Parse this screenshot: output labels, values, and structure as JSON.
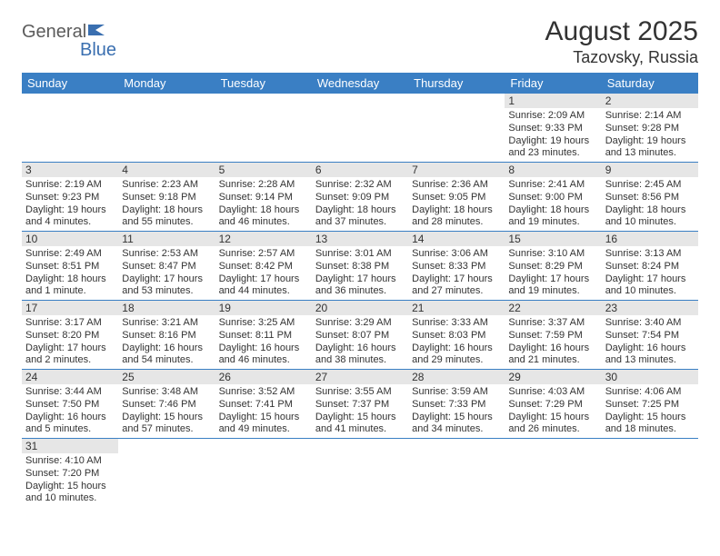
{
  "logo": {
    "part1": "General",
    "part2": "Blue"
  },
  "title": "August 2025",
  "location": "Tazovsky, Russia",
  "colors": {
    "headerBg": "#3a7fc4",
    "headerText": "#ffffff",
    "dayNumBg": "#e6e6e6",
    "border": "#3a7fc4",
    "text": "#333333",
    "logoGray": "#5b5b5b",
    "logoBlue": "#3a6fb0"
  },
  "weekdays": [
    "Sunday",
    "Monday",
    "Tuesday",
    "Wednesday",
    "Thursday",
    "Friday",
    "Saturday"
  ],
  "days": [
    {
      "n": "1",
      "sr": "Sunrise: 2:09 AM",
      "ss": "Sunset: 9:33 PM",
      "dl": "Daylight: 19 hours and 23 minutes."
    },
    {
      "n": "2",
      "sr": "Sunrise: 2:14 AM",
      "ss": "Sunset: 9:28 PM",
      "dl": "Daylight: 19 hours and 13 minutes."
    },
    {
      "n": "3",
      "sr": "Sunrise: 2:19 AM",
      "ss": "Sunset: 9:23 PM",
      "dl": "Daylight: 19 hours and 4 minutes."
    },
    {
      "n": "4",
      "sr": "Sunrise: 2:23 AM",
      "ss": "Sunset: 9:18 PM",
      "dl": "Daylight: 18 hours and 55 minutes."
    },
    {
      "n": "5",
      "sr": "Sunrise: 2:28 AM",
      "ss": "Sunset: 9:14 PM",
      "dl": "Daylight: 18 hours and 46 minutes."
    },
    {
      "n": "6",
      "sr": "Sunrise: 2:32 AM",
      "ss": "Sunset: 9:09 PM",
      "dl": "Daylight: 18 hours and 37 minutes."
    },
    {
      "n": "7",
      "sr": "Sunrise: 2:36 AM",
      "ss": "Sunset: 9:05 PM",
      "dl": "Daylight: 18 hours and 28 minutes."
    },
    {
      "n": "8",
      "sr": "Sunrise: 2:41 AM",
      "ss": "Sunset: 9:00 PM",
      "dl": "Daylight: 18 hours and 19 minutes."
    },
    {
      "n": "9",
      "sr": "Sunrise: 2:45 AM",
      "ss": "Sunset: 8:56 PM",
      "dl": "Daylight: 18 hours and 10 minutes."
    },
    {
      "n": "10",
      "sr": "Sunrise: 2:49 AM",
      "ss": "Sunset: 8:51 PM",
      "dl": "Daylight: 18 hours and 1 minute."
    },
    {
      "n": "11",
      "sr": "Sunrise: 2:53 AM",
      "ss": "Sunset: 8:47 PM",
      "dl": "Daylight: 17 hours and 53 minutes."
    },
    {
      "n": "12",
      "sr": "Sunrise: 2:57 AM",
      "ss": "Sunset: 8:42 PM",
      "dl": "Daylight: 17 hours and 44 minutes."
    },
    {
      "n": "13",
      "sr": "Sunrise: 3:01 AM",
      "ss": "Sunset: 8:38 PM",
      "dl": "Daylight: 17 hours and 36 minutes."
    },
    {
      "n": "14",
      "sr": "Sunrise: 3:06 AM",
      "ss": "Sunset: 8:33 PM",
      "dl": "Daylight: 17 hours and 27 minutes."
    },
    {
      "n": "15",
      "sr": "Sunrise: 3:10 AM",
      "ss": "Sunset: 8:29 PM",
      "dl": "Daylight: 17 hours and 19 minutes."
    },
    {
      "n": "16",
      "sr": "Sunrise: 3:13 AM",
      "ss": "Sunset: 8:24 PM",
      "dl": "Daylight: 17 hours and 10 minutes."
    },
    {
      "n": "17",
      "sr": "Sunrise: 3:17 AM",
      "ss": "Sunset: 8:20 PM",
      "dl": "Daylight: 17 hours and 2 minutes."
    },
    {
      "n": "18",
      "sr": "Sunrise: 3:21 AM",
      "ss": "Sunset: 8:16 PM",
      "dl": "Daylight: 16 hours and 54 minutes."
    },
    {
      "n": "19",
      "sr": "Sunrise: 3:25 AM",
      "ss": "Sunset: 8:11 PM",
      "dl": "Daylight: 16 hours and 46 minutes."
    },
    {
      "n": "20",
      "sr": "Sunrise: 3:29 AM",
      "ss": "Sunset: 8:07 PM",
      "dl": "Daylight: 16 hours and 38 minutes."
    },
    {
      "n": "21",
      "sr": "Sunrise: 3:33 AM",
      "ss": "Sunset: 8:03 PM",
      "dl": "Daylight: 16 hours and 29 minutes."
    },
    {
      "n": "22",
      "sr": "Sunrise: 3:37 AM",
      "ss": "Sunset: 7:59 PM",
      "dl": "Daylight: 16 hours and 21 minutes."
    },
    {
      "n": "23",
      "sr": "Sunrise: 3:40 AM",
      "ss": "Sunset: 7:54 PM",
      "dl": "Daylight: 16 hours and 13 minutes."
    },
    {
      "n": "24",
      "sr": "Sunrise: 3:44 AM",
      "ss": "Sunset: 7:50 PM",
      "dl": "Daylight: 16 hours and 5 minutes."
    },
    {
      "n": "25",
      "sr": "Sunrise: 3:48 AM",
      "ss": "Sunset: 7:46 PM",
      "dl": "Daylight: 15 hours and 57 minutes."
    },
    {
      "n": "26",
      "sr": "Sunrise: 3:52 AM",
      "ss": "Sunset: 7:41 PM",
      "dl": "Daylight: 15 hours and 49 minutes."
    },
    {
      "n": "27",
      "sr": "Sunrise: 3:55 AM",
      "ss": "Sunset: 7:37 PM",
      "dl": "Daylight: 15 hours and 41 minutes."
    },
    {
      "n": "28",
      "sr": "Sunrise: 3:59 AM",
      "ss": "Sunset: 7:33 PM",
      "dl": "Daylight: 15 hours and 34 minutes."
    },
    {
      "n": "29",
      "sr": "Sunrise: 4:03 AM",
      "ss": "Sunset: 7:29 PM",
      "dl": "Daylight: 15 hours and 26 minutes."
    },
    {
      "n": "30",
      "sr": "Sunrise: 4:06 AM",
      "ss": "Sunset: 7:25 PM",
      "dl": "Daylight: 15 hours and 18 minutes."
    },
    {
      "n": "31",
      "sr": "Sunrise: 4:10 AM",
      "ss": "Sunset: 7:20 PM",
      "dl": "Daylight: 15 hours and 10 minutes."
    }
  ],
  "startWeekday": 5
}
